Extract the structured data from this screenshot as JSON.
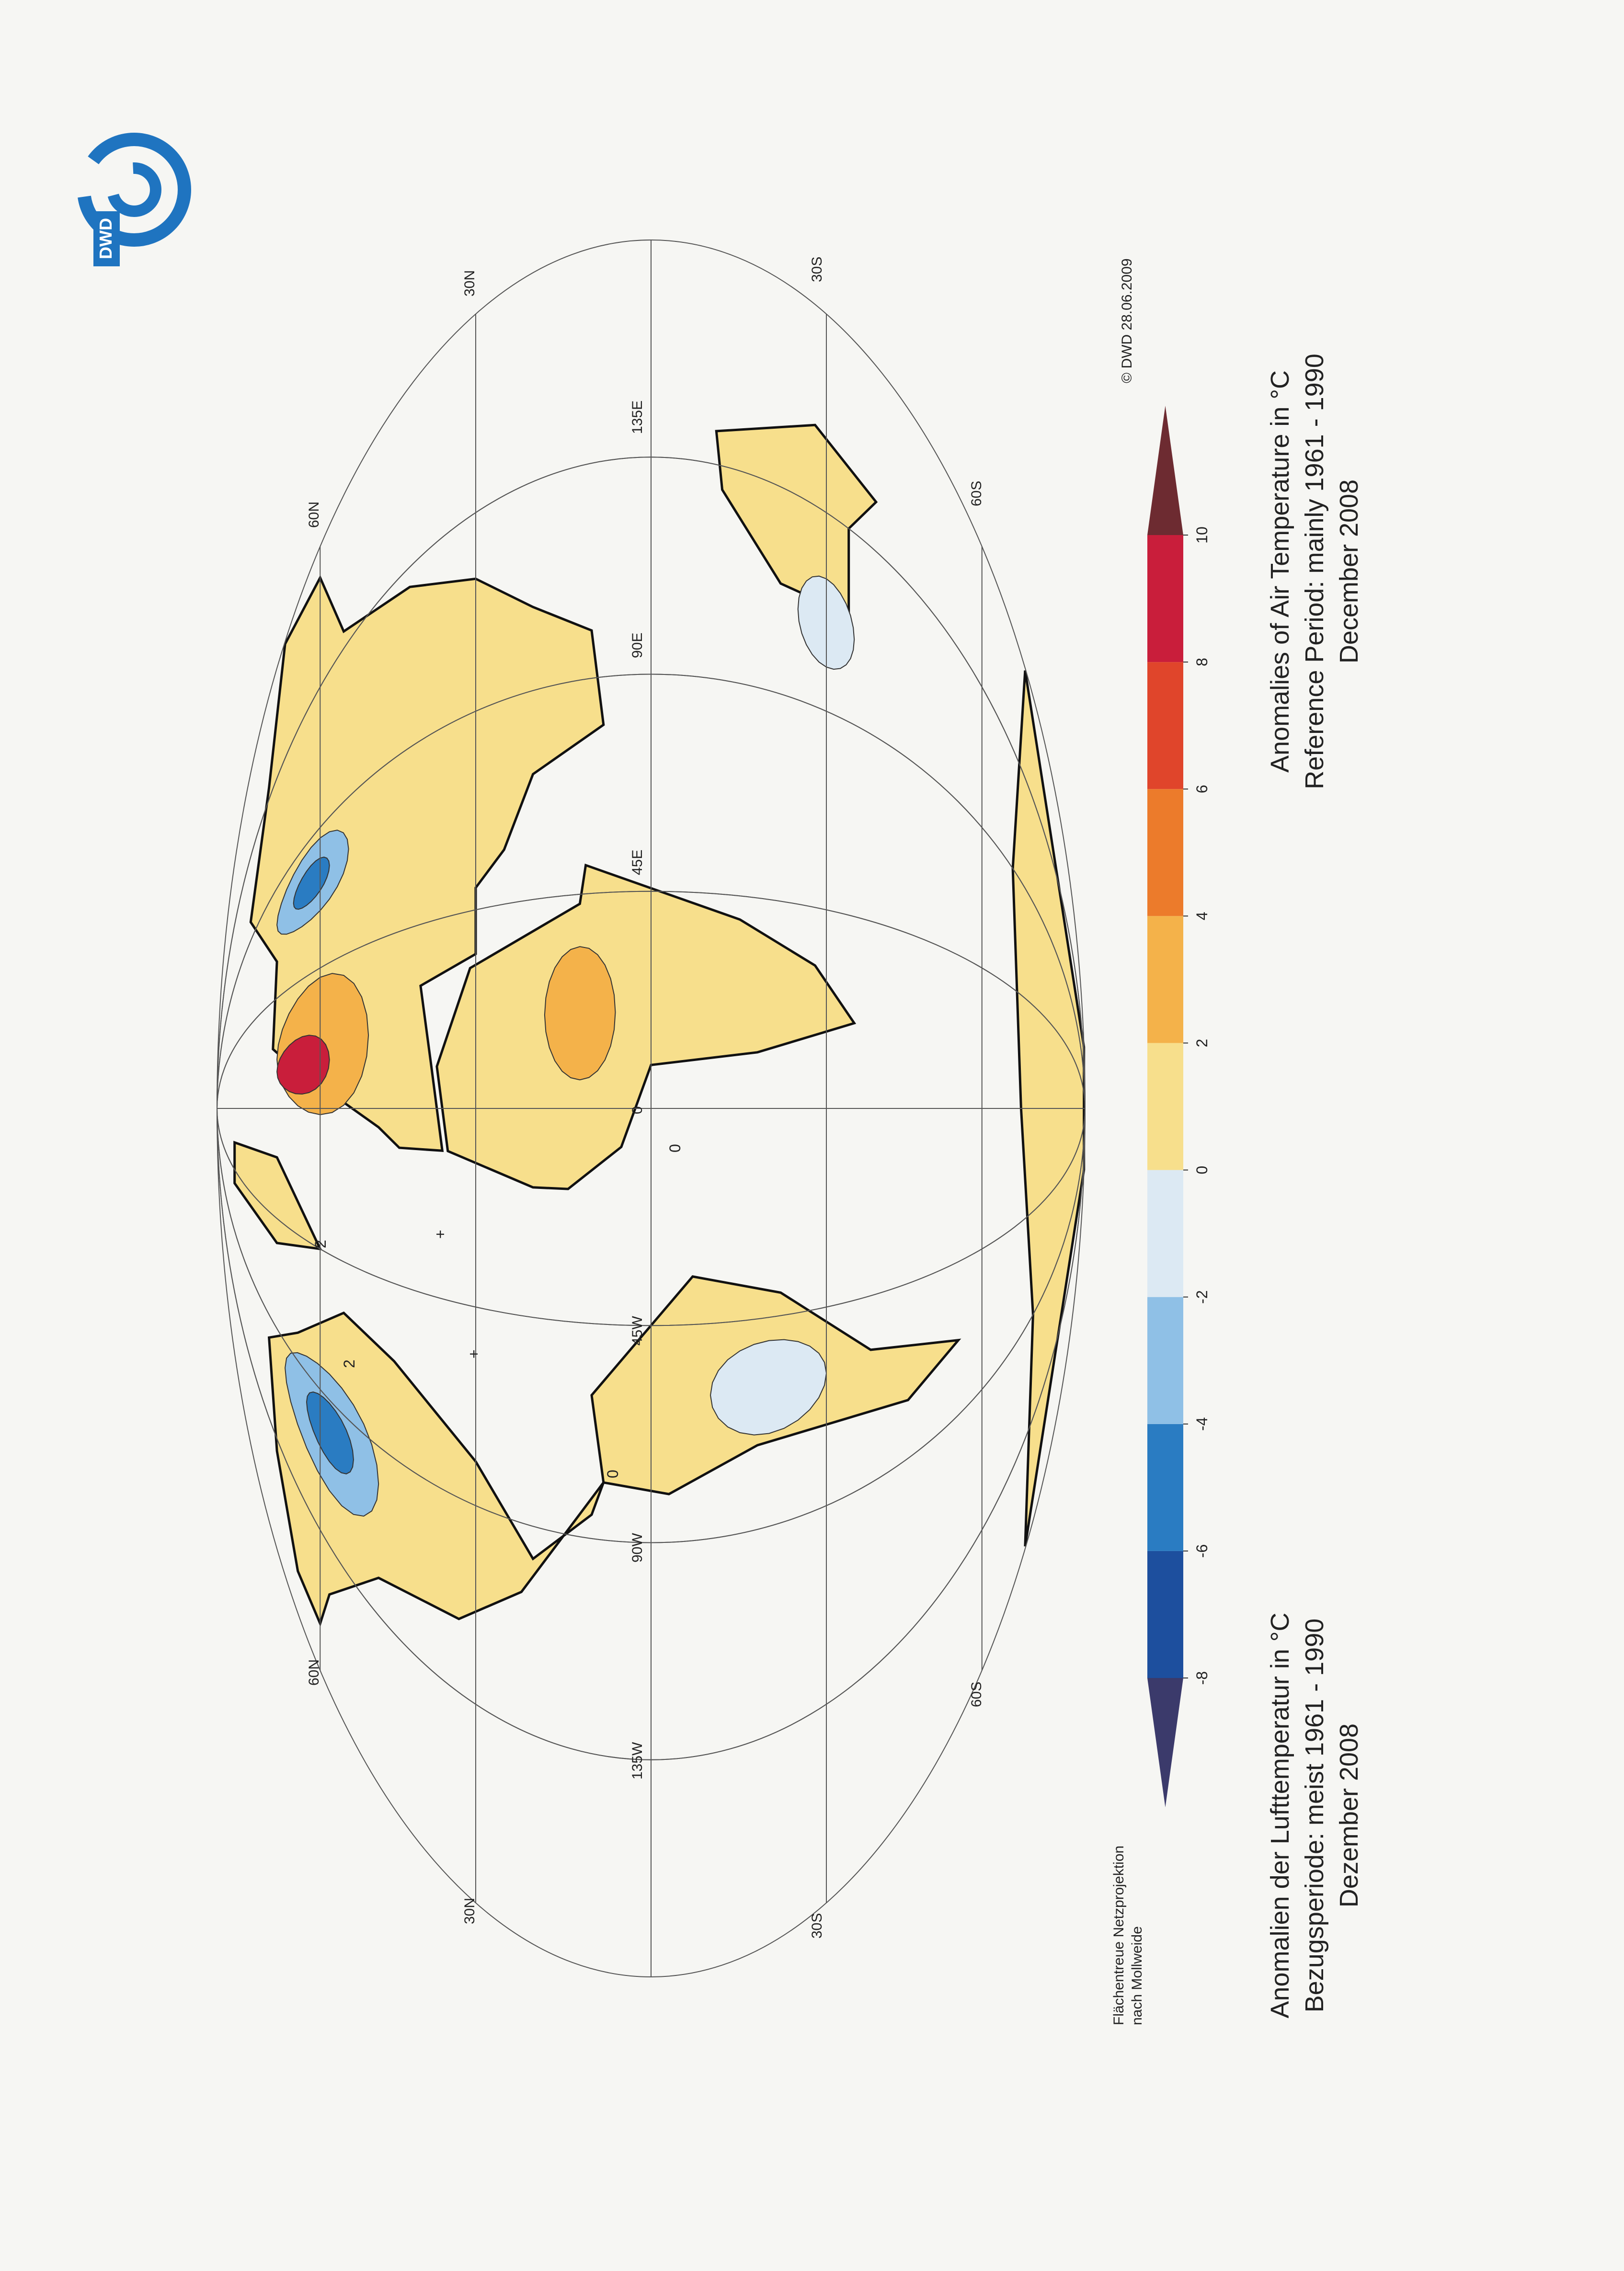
{
  "logo": {
    "text": "DWD"
  },
  "map": {
    "projection_note": [
      "Flächentreue Netzprojektion",
      "nach Mollweide"
    ],
    "copyright": "© DWD 28.06.2009",
    "graticule_labels": [
      "30N",
      "60N",
      "135E",
      "90E",
      "45E",
      "0",
      "45W",
      "90W",
      "135W",
      "60N",
      "30N",
      "30S",
      "60S",
      "60S",
      "30S"
    ],
    "contour_labels": [
      "0",
      "0",
      "2",
      "2",
      "+",
      "+"
    ]
  },
  "legend": {
    "ticks": [
      -8,
      -6,
      -4,
      -2,
      0,
      2,
      4,
      6,
      8,
      10
    ],
    "colors": [
      "#3b3a6b",
      "#1d4f9e",
      "#2a7cc2",
      "#8fc0e6",
      "#dce9f3",
      "#f7df8c",
      "#f4b24a",
      "#ec7b2b",
      "#e0452b",
      "#c91e3b",
      "#6d2b31"
    ]
  },
  "titles": {
    "german": [
      "Anomalien der Lufttemperatur in °C",
      "Bezugsperiode: meist 1961 - 1990",
      "Dezember 2008"
    ],
    "english": [
      "Anomalies of Air Temperature in °C",
      "Reference Period: mainly 1961 - 1990",
      "December 2008"
    ]
  }
}
